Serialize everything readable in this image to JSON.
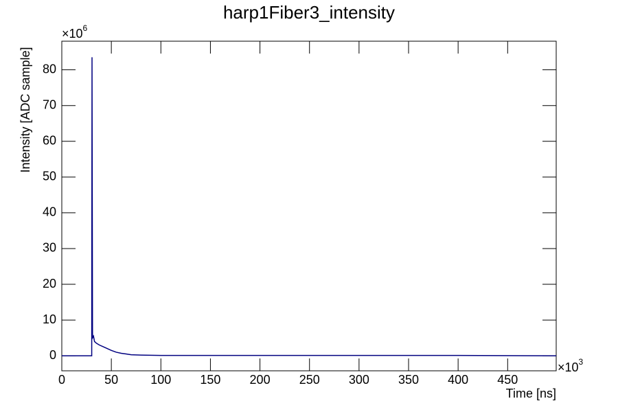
{
  "chart_data": {
    "type": "line",
    "title": "harp1Fiber3_intensity",
    "x_label": "Time [ns]",
    "y_label": "Intensity [ADC sample]",
    "x_multiplier": {
      "base": "×10",
      "exponent": "3"
    },
    "y_multiplier": {
      "base": "×10",
      "exponent": "6"
    },
    "x": [
      0,
      29.5,
      30.2,
      30.5,
      31,
      32,
      33,
      35,
      38,
      42,
      46,
      50,
      55,
      60,
      65,
      70,
      80,
      100,
      150,
      200,
      300,
      400,
      499
    ],
    "series": [
      {
        "name": "harp1Fiber3_intensity",
        "color": "#000080",
        "values": [
          0,
          0,
          0,
          83.5,
          5,
          5.5,
          4,
          3.5,
          3,
          2.5,
          2,
          1.5,
          1,
          0.7,
          0.5,
          0.3,
          0.2,
          0.1,
          0.1,
          0.1,
          0.1,
          0.1,
          0
        ]
      }
    ],
    "xlim": [
      0,
      499
    ],
    "ylim": [
      -4.2,
      88
    ],
    "xticks": [
      0,
      50,
      100,
      150,
      200,
      250,
      300,
      350,
      400,
      450
    ],
    "yticks": [
      0,
      10,
      20,
      30,
      40,
      50,
      60,
      70,
      80
    ],
    "grid": false
  }
}
